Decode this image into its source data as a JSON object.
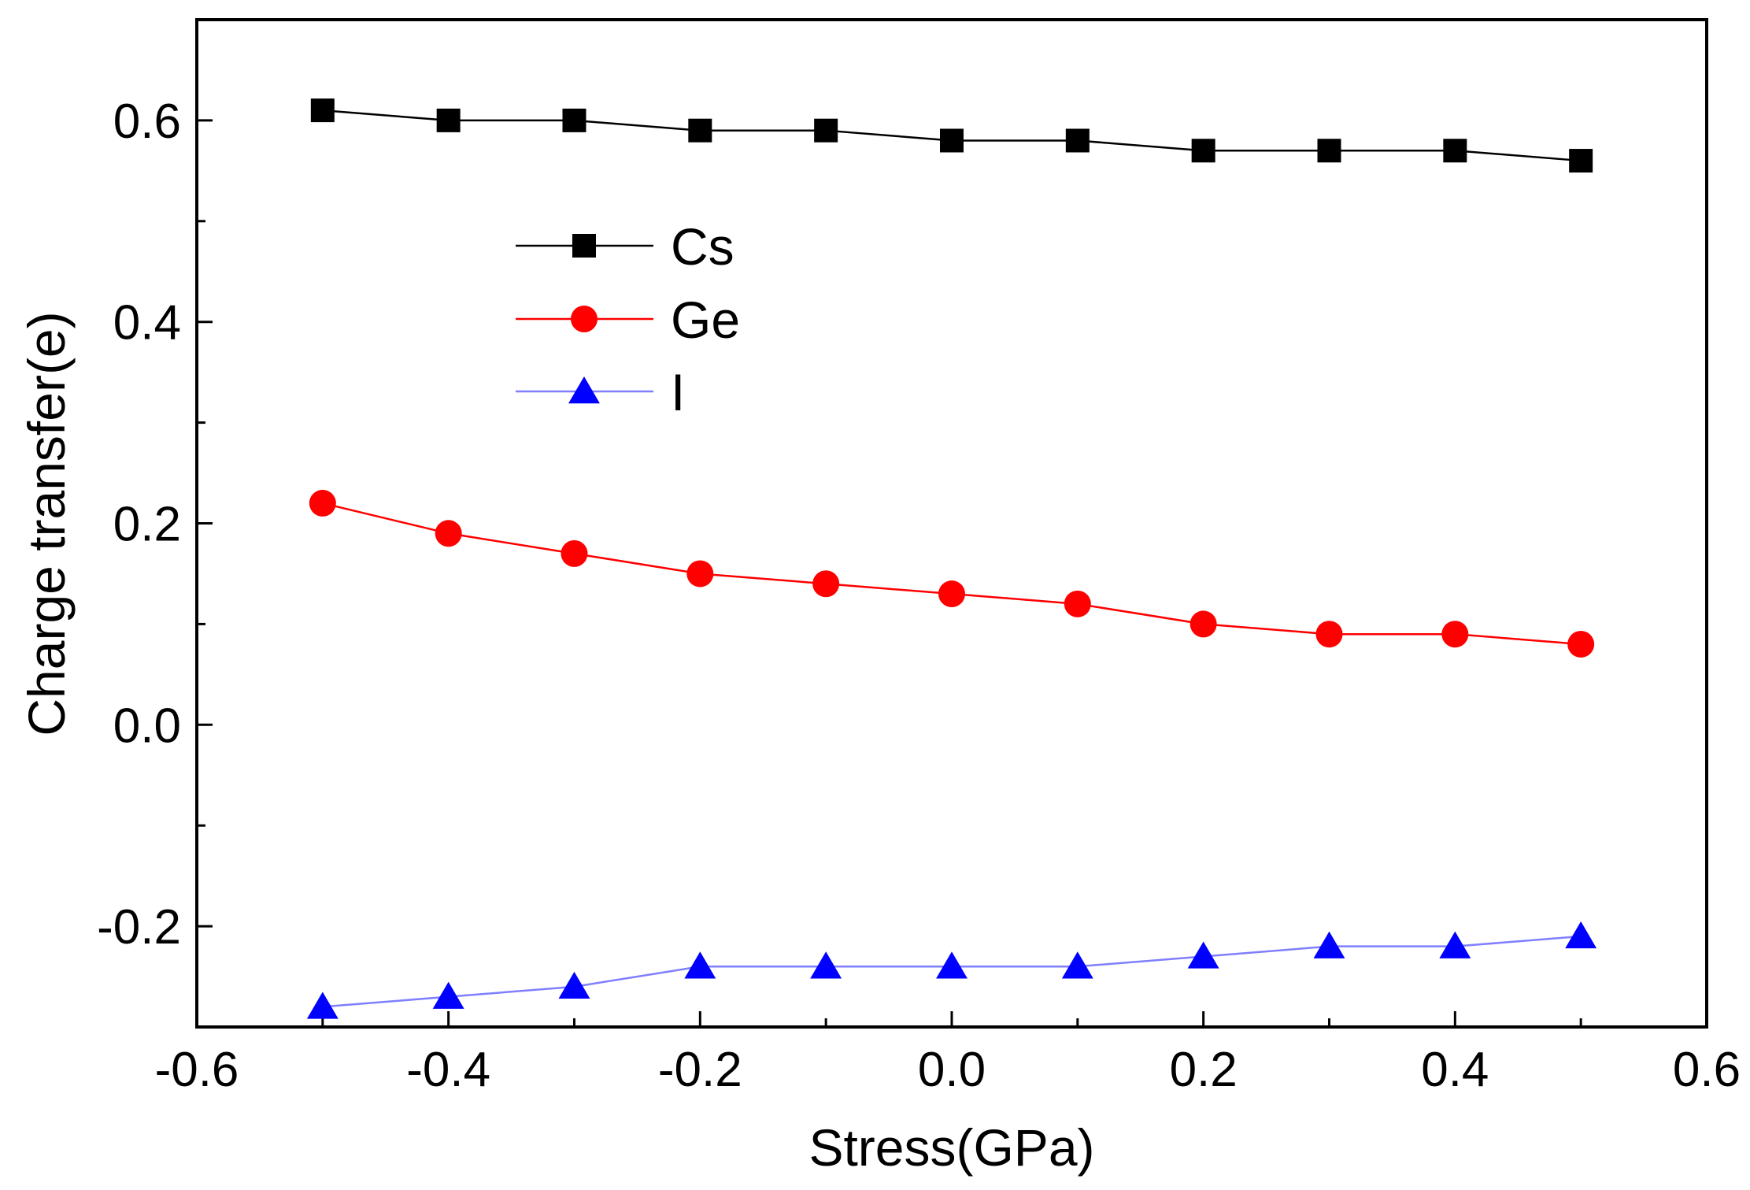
{
  "chart_data": {
    "type": "line",
    "title": "",
    "xlabel": "Stress(GPa)",
    "ylabel": "Charge transfer(e)",
    "xlim": [
      -0.6,
      0.6
    ],
    "ylim": [
      -0.3,
      0.7
    ],
    "x_ticks": [
      -0.6,
      -0.4,
      -0.2,
      0.0,
      0.2,
      0.4,
      0.6
    ],
    "x_tick_labels": [
      "-0.6",
      "-0.4",
      "-0.2",
      "0.0",
      "0.2",
      "0.4",
      "0.6"
    ],
    "y_ticks": [
      -0.2,
      0.0,
      0.2,
      0.4,
      0.6
    ],
    "y_tick_labels": [
      "-0.2",
      "0.0",
      "0.2",
      "0.4",
      "0.6"
    ],
    "y_minor_ticks": [
      -0.1,
      0.1,
      0.3,
      0.5
    ],
    "x_minor_ticks": [
      -0.5,
      -0.3,
      -0.1,
      0.1,
      0.3,
      0.5
    ],
    "grid": false,
    "legend_position": "upper-left",
    "x": [
      -0.5,
      -0.4,
      -0.3,
      -0.2,
      -0.1,
      0.0,
      0.1,
      0.2,
      0.3,
      0.4,
      0.5
    ],
    "series": [
      {
        "name": "Cs",
        "color": "#000000",
        "marker": "square",
        "values": [
          0.61,
          0.6,
          0.6,
          0.59,
          0.59,
          0.58,
          0.58,
          0.57,
          0.57,
          0.57,
          0.56
        ]
      },
      {
        "name": "Ge",
        "color": "#ff0000",
        "marker": "circle",
        "values": [
          0.22,
          0.19,
          0.17,
          0.15,
          0.14,
          0.13,
          0.12,
          0.1,
          0.09,
          0.09,
          0.08
        ]
      },
      {
        "name": "I",
        "color": "#0000ff",
        "line_color": "#7f7fff",
        "marker": "triangle",
        "values": [
          -0.28,
          -0.27,
          -0.26,
          -0.24,
          -0.24,
          -0.24,
          -0.24,
          -0.23,
          -0.22,
          -0.22,
          -0.21
        ]
      }
    ]
  }
}
